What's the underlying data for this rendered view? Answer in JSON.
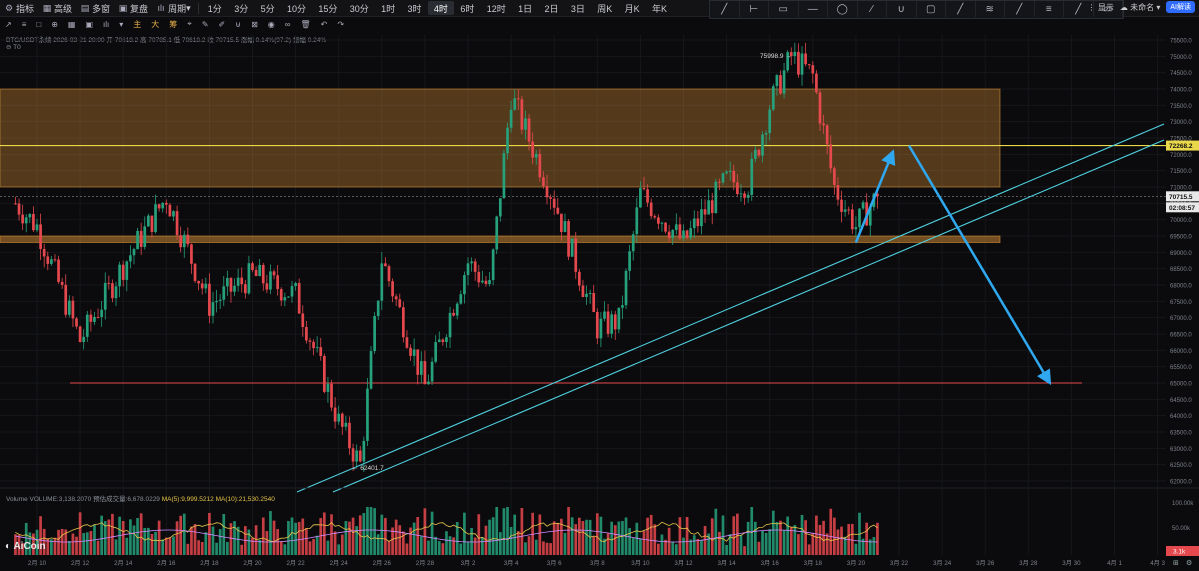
{
  "toolbar": {
    "items": [
      {
        "icon": "indicator-icon",
        "glyph": "⚙",
        "label": "指标"
      },
      {
        "icon": "advanced-icon",
        "glyph": "▦",
        "label": "高级"
      },
      {
        "icon": "multi-icon",
        "glyph": "▤",
        "label": "多窗"
      },
      {
        "icon": "replay-icon",
        "glyph": "▣",
        "label": "复盘"
      },
      {
        "icon": "period-icon",
        "glyph": "ılı",
        "label": "周期"
      }
    ],
    "periods": [
      "1分",
      "3分",
      "5分",
      "10分",
      "15分",
      "30分",
      "1时",
      "3时",
      "4时",
      "6时",
      "12时",
      "1日",
      "2日",
      "3日",
      "周K",
      "月K",
      "年K"
    ],
    "active_period": "4时",
    "right": {
      "display": "显示",
      "user": "未命名",
      "ai": "AI解读"
    }
  },
  "toolbar2": {
    "glyphs": [
      "↗",
      "≡",
      "□",
      "⊕",
      "▦",
      "▣",
      "ılı",
      "▾"
    ],
    "chips": [
      "主",
      "大",
      "筹"
    ]
  },
  "drawtools": [
    "line-tool-icon",
    "hline-tool-icon",
    "rect-tool-icon",
    "ray-tool-icon",
    "ellipse-tool-icon",
    "path-tool-icon",
    "arc-tool-icon",
    "box-tool-icon",
    "pen-tool-icon",
    "fib-tool-icon",
    "pattern-tool-icon",
    "text-tool-icon",
    "brush-tool-icon",
    "ruler-tool-icon"
  ],
  "ohlc_line": "BTC/USDT永续  2026-03-21 20:00  开 70618.2  高 70785.1  低 70618.2  收 70715.5  涨幅 0.14%(97.2)  振幅 0.24%",
  "marker_line": "T0",
  "volume_line": {
    "prefix": "Volume  VOLUME:3,138.2070  预估成交量:6,678.0229  ",
    "ma5": "MA(5):9,999.5212",
    "ma10": "MA(10):21,530.2540"
  },
  "logo": "AiCoin",
  "y_axis": [
    "75500.0",
    "75000.0",
    "74500.0",
    "74000.0",
    "73500.0",
    "73000.0",
    "72500.0",
    "72000.0",
    "71500.0",
    "71000.0",
    "70500.0",
    "70000.0",
    "69500.0",
    "69000.0",
    "68500.0",
    "68000.0",
    "67500.0",
    "67000.0",
    "66500.0",
    "66000.0",
    "65500.0",
    "65000.0",
    "64500.0",
    "64000.0",
    "63500.0",
    "63000.0",
    "62500.0",
    "62000.0"
  ],
  "vol_axis": [
    "100.00k",
    "50.00k"
  ],
  "x_axis": [
    "2月 10",
    "2月 12",
    "2月 14",
    "2月 16",
    "2月 18",
    "2月 20",
    "2月 22",
    "2月 24",
    "2月 26",
    "2月 28",
    "3月 2",
    "3月 4",
    "3月 6",
    "3月 8",
    "3月 10",
    "3月 12",
    "3月 14",
    "3月 16",
    "3月 18",
    "3月 20",
    "3月 22",
    "3月 24",
    "3月 26",
    "3月 28",
    "3月 30",
    "4月 1",
    "4月 3"
  ],
  "price_labels": {
    "level": "72268.2",
    "current": "70715.5",
    "countdown": "02:08:57",
    "vol_current": "3.1k",
    "high_mark": "75998.9 →",
    "low_mark": "← 62401.7"
  },
  "corner_icons": [
    "expand-icon",
    "settings-icon"
  ],
  "colors": {
    "up": "#26a17b",
    "down": "#e5484d",
    "zone": "#f0a03c",
    "level": "#e8d84a",
    "trend": "#4fd0e0",
    "arrow": "#2fa8f0"
  },
  "chart_data": {
    "type": "candlestick",
    "symbol": "BTC/USDT永续",
    "interval": "4时",
    "last": {
      "time": "2026-03-21 20:00",
      "open": 70618.2,
      "high": 70785.1,
      "low": 70618.2,
      "close": 70715.5
    },
    "high": 75998.9,
    "low": 62401.7,
    "price_path_approx": [
      {
        "t": "2月 9",
        "p": 70500
      },
      {
        "t": "2月 10",
        "p": 69800
      },
      {
        "t": "2月 12",
        "p": 66300
      },
      {
        "t": "2月 14",
        "p": 68600
      },
      {
        "t": "2月 16",
        "p": 70700
      },
      {
        "t": "2月 18",
        "p": 67400
      },
      {
        "t": "2月 20",
        "p": 68300
      },
      {
        "t": "2月 22",
        "p": 67700
      },
      {
        "t": "2月 24",
        "p": 63800
      },
      {
        "t": "2月 25",
        "p": 62500
      },
      {
        "t": "2月 26",
        "p": 68800
      },
      {
        "t": "2月 28",
        "p": 64900
      },
      {
        "t": "3月 2",
        "p": 68700
      },
      {
        "t": "3月 3",
        "p": 67900
      },
      {
        "t": "3月 4",
        "p": 73800
      },
      {
        "t": "3月 6",
        "p": 70600
      },
      {
        "t": "3月 8",
        "p": 66700
      },
      {
        "t": "3月 9",
        "p": 66900
      },
      {
        "t": "3月 10",
        "p": 70800
      },
      {
        "t": "3月 12",
        "p": 69300
      },
      {
        "t": "3月 14",
        "p": 71200
      },
      {
        "t": "3月 15",
        "p": 71100
      },
      {
        "t": "3月 16",
        "p": 73500
      },
      {
        "t": "3月 17",
        "p": 75000
      },
      {
        "t": "3月 18",
        "p": 74400
      },
      {
        "t": "3月 19",
        "p": 71000
      },
      {
        "t": "3月 20",
        "p": 69800
      },
      {
        "t": "3月 21",
        "p": 70715
      }
    ],
    "zones": [
      {
        "from": 71000,
        "to": 74000
      },
      {
        "from": 69300,
        "to": 69500
      }
    ],
    "levels": [
      72268.2,
      65000
    ],
    "projection": [
      {
        "t": "3月 20",
        "p": 69300
      },
      {
        "t": "3月 22",
        "p": 72268
      },
      {
        "t": "3月 29",
        "p": 65000
      }
    ]
  }
}
